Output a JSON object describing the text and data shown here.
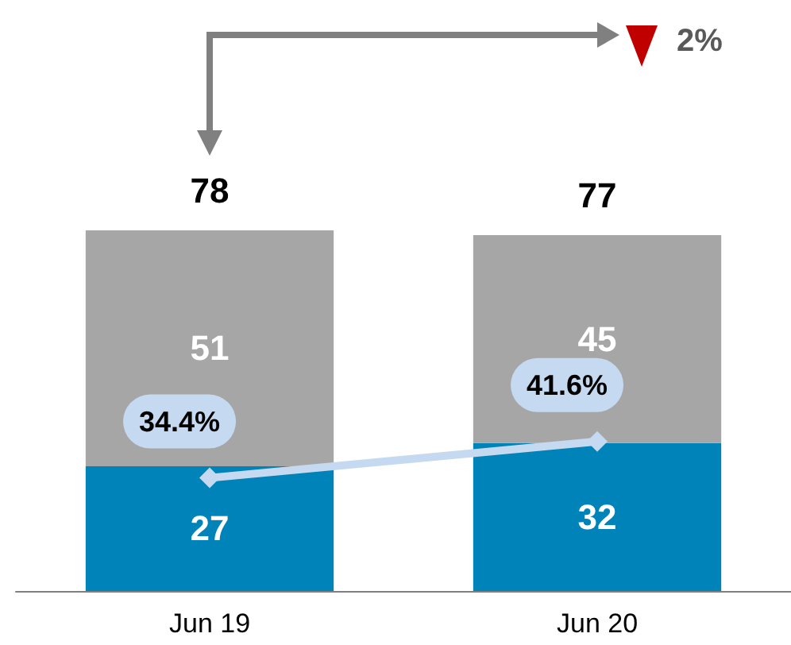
{
  "chart_data": {
    "type": "bar",
    "stacked": true,
    "categories": [
      "Jun 19",
      "Jun 20"
    ],
    "series": [
      {
        "color": "#0083b8",
        "values": [
          27,
          32
        ]
      },
      {
        "color": "#a6a6a6",
        "values": [
          51,
          45
        ]
      },
      {
        "type": "line",
        "axis": "y2",
        "color": "#c5d9f0",
        "values": [
          34.4,
          41.6
        ],
        "value_labels": [
          "34.4%",
          "41.6%"
        ],
        "marker": "diamond",
        "line_style": "solid"
      }
    ],
    "data_labels": true,
    "totals": [
      "78",
      "77"
    ],
    "tick_labels": "x",
    "grid": false,
    "annotations": [
      "2%"
    ]
  }
}
